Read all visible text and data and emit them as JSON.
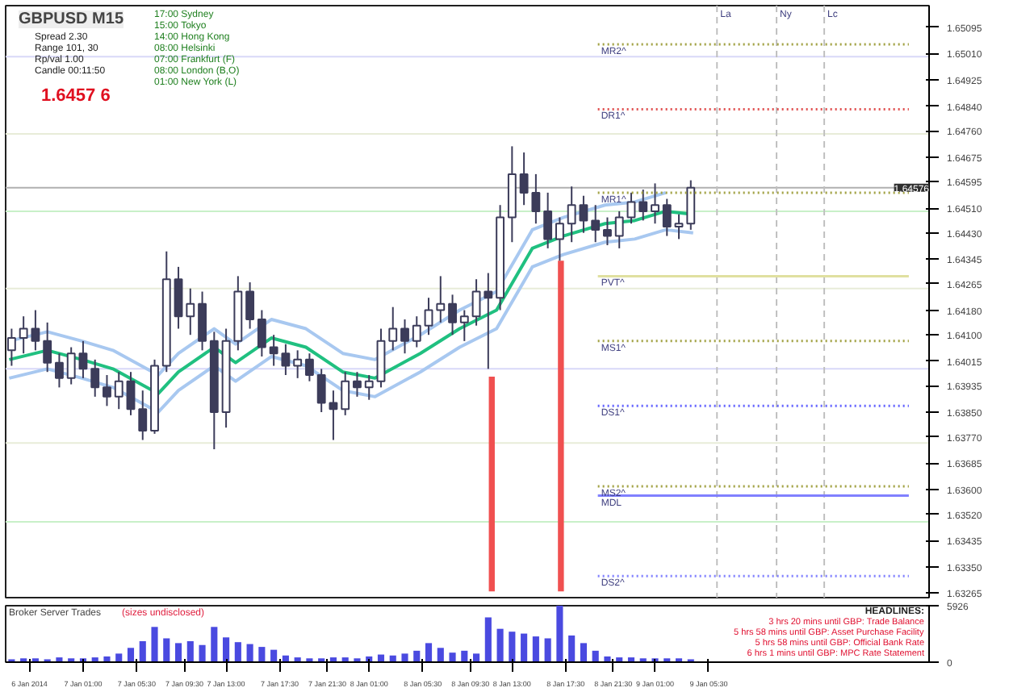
{
  "chart_data": [
    {
      "type": "candlestick",
      "title": "GBPUSD M15",
      "color": "#3c3c5a",
      "tick_labels": "y",
      "annotations": [
        "Spread 2.30",
        "Range 101, 30",
        "Rp/val 1.00",
        "Candle 00:11:50",
        "1.6457 6",
        "17:00 Sydney",
        "15:00 Tokyo",
        "14:00 Hong Kong",
        "08:00 Helsinki",
        "07:00 Frankfurt (F)",
        "08:00 London (B,O)",
        "01:00 New York (L)"
      ],
      "xlim": [
        "2014-01-06T18:30",
        "2014-01-10T00:00"
      ],
      "ylim": [
        1.6325,
        1.65165
      ],
      "yticks": [
        {
          "value": 1.65095,
          "label": "1.65095"
        },
        {
          "value": 1.6501,
          "label": "1.65010"
        },
        {
          "value": 1.64925,
          "label": "1.64925"
        },
        {
          "value": 1.6484,
          "label": "1.64840"
        },
        {
          "value": 1.6476,
          "label": "1.64760"
        },
        {
          "value": 1.64675,
          "label": "1.64675"
        },
        {
          "value": 1.64595,
          "label": "1.64595"
        },
        {
          "value": 1.6451,
          "label": "1.64510"
        },
        {
          "value": 1.6443,
          "label": "1.64430"
        },
        {
          "value": 1.64345,
          "label": "1.64345"
        },
        {
          "value": 1.64265,
          "label": "1.64265"
        },
        {
          "value": 1.6418,
          "label": "1.64180"
        },
        {
          "value": 1.641,
          "label": "1.64100"
        },
        {
          "value": 1.64015,
          "label": "1.64015"
        },
        {
          "value": 1.63935,
          "label": "1.63935"
        },
        {
          "value": 1.6385,
          "label": "1.63850"
        },
        {
          "value": 1.6377,
          "label": "1.63770"
        },
        {
          "value": 1.63685,
          "label": "1.63685"
        },
        {
          "value": 1.636,
          "label": "1.63600"
        },
        {
          "value": 1.6352,
          "label": "1.63520"
        },
        {
          "value": 1.63435,
          "label": "1.63435"
        },
        {
          "value": 1.6335,
          "label": "1.63350"
        },
        {
          "value": 1.63265,
          "label": "1.63265"
        }
      ],
      "x": [
        "2014-01-06T19:00",
        "2014-01-06T20:00",
        "2014-01-06T21:00",
        "2014-01-06T22:00",
        "2014-01-06T23:00",
        "2014-01-07T00:00",
        "2014-01-07T01:00",
        "2014-01-07T02:00",
        "2014-01-07T03:00",
        "2014-01-07T04:00",
        "2014-01-07T05:00",
        "2014-01-07T06:00",
        "2014-01-07T07:00",
        "2014-01-07T08:00",
        "2014-01-07T09:00",
        "2014-01-07T10:00",
        "2014-01-07T11:00",
        "2014-01-07T12:00",
        "2014-01-07T13:00",
        "2014-01-07T14:00",
        "2014-01-07T15:00",
        "2014-01-07T16:00",
        "2014-01-07T17:00",
        "2014-01-07T18:00",
        "2014-01-07T19:00",
        "2014-01-07T20:00",
        "2014-01-07T21:00",
        "2014-01-07T22:00",
        "2014-01-07T23:00",
        "2014-01-08T00:00",
        "2014-01-08T01:00",
        "2014-01-08T02:00",
        "2014-01-08T03:00",
        "2014-01-08T04:00",
        "2014-01-08T05:00",
        "2014-01-08T06:00",
        "2014-01-08T07:00",
        "2014-01-08T08:00",
        "2014-01-08T09:00",
        "2014-01-08T10:00",
        "2014-01-08T11:00",
        "2014-01-08T12:00",
        "2014-01-08T13:00",
        "2014-01-08T14:00",
        "2014-01-08T15:00",
        "2014-01-08T16:00",
        "2014-01-08T17:00",
        "2014-01-08T18:00",
        "2014-01-08T19:00",
        "2014-01-08T20:00",
        "2014-01-08T21:00",
        "2014-01-08T22:00",
        "2014-01-08T23:00",
        "2014-01-09T00:00",
        "2014-01-09T01:00",
        "2014-01-09T02:00",
        "2014-01-09T03:00",
        "2014-01-09T04:00"
      ],
      "ohlc": [
        [
          1.6405,
          1.6412,
          1.64,
          1.6409
        ],
        [
          1.6409,
          1.6416,
          1.6404,
          1.6412
        ],
        [
          1.6412,
          1.6418,
          1.6405,
          1.6408
        ],
        [
          1.6408,
          1.6414,
          1.6398,
          1.6401
        ],
        [
          1.6401,
          1.6404,
          1.6393,
          1.6396
        ],
        [
          1.6396,
          1.6406,
          1.6394,
          1.6404
        ],
        [
          1.6404,
          1.6408,
          1.6396,
          1.6399
        ],
        [
          1.6399,
          1.6402,
          1.639,
          1.6393
        ],
        [
          1.6393,
          1.6397,
          1.6387,
          1.639
        ],
        [
          1.639,
          1.6398,
          1.6386,
          1.6395
        ],
        [
          1.6395,
          1.6398,
          1.6384,
          1.6386
        ],
        [
          1.6386,
          1.6392,
          1.6376,
          1.6379
        ],
        [
          1.6379,
          1.6402,
          1.6378,
          1.64
        ],
        [
          1.64,
          1.6437,
          1.6398,
          1.6428
        ],
        [
          1.6428,
          1.6432,
          1.6412,
          1.6416
        ],
        [
          1.6416,
          1.6425,
          1.641,
          1.642
        ],
        [
          1.642,
          1.6424,
          1.6405,
          1.6408
        ],
        [
          1.6408,
          1.6411,
          1.6373,
          1.6385
        ],
        [
          1.6385,
          1.6412,
          1.638,
          1.6408
        ],
        [
          1.6408,
          1.6429,
          1.6405,
          1.6424
        ],
        [
          1.6424,
          1.6427,
          1.6412,
          1.6415
        ],
        [
          1.6415,
          1.6418,
          1.6403,
          1.6406
        ],
        [
          1.6406,
          1.641,
          1.64,
          1.6404
        ],
        [
          1.6404,
          1.6407,
          1.6397,
          1.64
        ],
        [
          1.64,
          1.6405,
          1.6396,
          1.6402
        ],
        [
          1.6402,
          1.6404,
          1.6395,
          1.6397
        ],
        [
          1.6397,
          1.6399,
          1.6385,
          1.6388
        ],
        [
          1.6388,
          1.6392,
          1.6376,
          1.6386
        ],
        [
          1.6386,
          1.6398,
          1.6384,
          1.6395
        ],
        [
          1.6395,
          1.6398,
          1.639,
          1.6393
        ],
        [
          1.6393,
          1.6397,
          1.6389,
          1.6395
        ],
        [
          1.6395,
          1.6412,
          1.6393,
          1.6408
        ],
        [
          1.6408,
          1.6419,
          1.6405,
          1.6412
        ],
        [
          1.6412,
          1.6415,
          1.6404,
          1.6408
        ],
        [
          1.6408,
          1.6416,
          1.6406,
          1.6413
        ],
        [
          1.6413,
          1.6422,
          1.641,
          1.6418
        ],
        [
          1.6418,
          1.6429,
          1.6414,
          1.642
        ],
        [
          1.642,
          1.6423,
          1.641,
          1.6414
        ],
        [
          1.6414,
          1.6418,
          1.6408,
          1.6416
        ],
        [
          1.6416,
          1.6428,
          1.6413,
          1.6424
        ],
        [
          1.6424,
          1.643,
          1.6399,
          1.6422
        ],
        [
          1.6422,
          1.6452,
          1.6418,
          1.6448
        ],
        [
          1.6448,
          1.6471,
          1.644,
          1.6462
        ],
        [
          1.6462,
          1.6469,
          1.6452,
          1.6456
        ],
        [
          1.6456,
          1.6462,
          1.6446,
          1.645
        ],
        [
          1.645,
          1.6456,
          1.6438,
          1.6441
        ],
        [
          1.6441,
          1.6448,
          1.6434,
          1.6446
        ],
        [
          1.6446,
          1.6458,
          1.644,
          1.6452
        ],
        [
          1.6452,
          1.6455,
          1.6443,
          1.6447
        ],
        [
          1.6447,
          1.6452,
          1.644,
          1.6444
        ],
        [
          1.6444,
          1.6448,
          1.6439,
          1.6442
        ],
        [
          1.6442,
          1.645,
          1.6438,
          1.6448
        ],
        [
          1.6448,
          1.6456,
          1.6446,
          1.6453
        ],
        [
          1.6453,
          1.6457,
          1.6447,
          1.645
        ],
        [
          1.645,
          1.6459,
          1.6446,
          1.6452
        ],
        [
          1.6452,
          1.6454,
          1.6442,
          1.6445
        ],
        [
          1.6445,
          1.6449,
          1.6441,
          1.6446
        ],
        [
          1.6446,
          1.646,
          1.6444,
          1.64576
        ]
      ],
      "series": [
        {
          "type": "line",
          "color": "#a8c8f0",
          "x": [
            "2014-01-06T18:48",
            "2014-01-06T22:00",
            "2014-01-07T00:54",
            "2014-01-07T03:30",
            "2014-01-07T07:18",
            "2014-01-07T09:00",
            "2014-01-07T12:00",
            "2014-01-07T13:48",
            "2014-01-07T16:48",
            "2014-01-07T19:42",
            "2014-01-07T22:48",
            "2014-01-08T01:30",
            "2014-01-08T05:18",
            "2014-01-08T08:36",
            "2014-01-08T11:42",
            "2014-01-08T14:42",
            "2014-01-08T17:18",
            "2014-01-08T20:48",
            "2014-01-08T23:18",
            "2014-01-09T01:54"
          ],
          "values": [
            1.6408,
            1.6411,
            1.6408,
            1.6405,
            1.6397,
            1.6404,
            1.6412,
            1.6407,
            1.6415,
            1.6412,
            1.6404,
            1.6402,
            1.641,
            1.6418,
            1.6424,
            1.6444,
            1.6448,
            1.6452,
            1.6453,
            1.6456
          ]
        },
        {
          "type": "line",
          "color": "#a8c8f0",
          "x": [
            "2014-01-06T18:48",
            "2014-01-06T22:00",
            "2014-01-07T00:54",
            "2014-01-07T03:30",
            "2014-01-07T07:18",
            "2014-01-07T09:00",
            "2014-01-07T12:00",
            "2014-01-07T13:48",
            "2014-01-07T16:48",
            "2014-01-07T19:42",
            "2014-01-07T22:48",
            "2014-01-08T01:30",
            "2014-01-08T05:18",
            "2014-01-08T08:36",
            "2014-01-08T11:42",
            "2014-01-08T14:42",
            "2014-01-08T17:18",
            "2014-01-08T20:48",
            "2014-01-08T23:18",
            "2014-01-09T01:54",
            "2014-01-09T04:12"
          ],
          "values": [
            1.6396,
            1.6399,
            1.6396,
            1.6393,
            1.6385,
            1.6392,
            1.64,
            1.6395,
            1.6403,
            1.64,
            1.6392,
            1.639,
            1.6398,
            1.6406,
            1.6412,
            1.6432,
            1.6436,
            1.644,
            1.6441,
            1.6444,
            1.6443
          ]
        },
        {
          "type": "line",
          "color": "#20c080",
          "x": [
            "2014-01-06T18:48",
            "2014-01-06T22:00",
            "2014-01-07T00:54",
            "2014-01-07T03:30",
            "2014-01-07T07:18",
            "2014-01-07T09:00",
            "2014-01-07T12:00",
            "2014-01-07T13:48",
            "2014-01-07T16:48",
            "2014-01-07T19:42",
            "2014-01-07T22:48",
            "2014-01-08T01:30",
            "2014-01-08T05:18",
            "2014-01-08T08:36",
            "2014-01-08T11:42",
            "2014-01-08T14:42",
            "2014-01-08T17:18",
            "2014-01-08T20:48",
            "2014-01-08T23:18",
            "2014-01-09T01:54",
            "2014-01-09T04:12"
          ],
          "values": [
            1.6402,
            1.6405,
            1.6402,
            1.6399,
            1.6391,
            1.6398,
            1.6406,
            1.6401,
            1.6409,
            1.6406,
            1.6398,
            1.6396,
            1.6404,
            1.6412,
            1.6418,
            1.6438,
            1.6442,
            1.6446,
            1.6447,
            1.645,
            1.6449
          ]
        },
        {
          "type": "bar",
          "color": "#f05050",
          "x": [
            "2014-01-08T11:18",
            "2014-01-08T17:06"
          ],
          "base": [
            1.6327,
            1.6327
          ],
          "values": [
            0.00695,
            0.0107
          ]
        },
        {
          "type": "line",
          "name": "MR2^",
          "color": "#a0a040",
          "line_style": "dotted",
          "x": [
            "2014-01-08T20:12",
            "2014-01-09T22:18"
          ],
          "values": [
            1.6504,
            1.6504
          ]
        },
        {
          "type": "line",
          "name": "DR1^",
          "color": "#e05050",
          "line_style": "dotted",
          "x": [
            "2014-01-08T20:12",
            "2014-01-09T22:18"
          ],
          "values": [
            1.6483,
            1.6483
          ]
        },
        {
          "type": "line",
          "name": "MR1^",
          "color": "#a0a040",
          "line_style": "dotted",
          "x": [
            "2014-01-08T20:12",
            "2014-01-09T22:18"
          ],
          "values": [
            1.6456,
            1.6456
          ]
        },
        {
          "type": "line",
          "name": "PVT^",
          "color": "#e0e0a0",
          "line_style": "solid",
          "x": [
            "2014-01-08T20:12",
            "2014-01-09T22:18"
          ],
          "values": [
            1.6429,
            1.6429
          ]
        },
        {
          "type": "line",
          "name": "MS1^",
          "color": "#a0a040",
          "line_style": "dotted",
          "x": [
            "2014-01-08T20:12",
            "2014-01-09T22:18"
          ],
          "values": [
            1.6408,
            1.6408
          ]
        },
        {
          "type": "line",
          "name": "DS1^",
          "color": "#6060ff",
          "line_style": "dotted",
          "x": [
            "2014-01-08T20:12",
            "2014-01-09T22:18"
          ],
          "values": [
            1.6387,
            1.6387
          ]
        },
        {
          "type": "line",
          "name": "MS2^",
          "color": "#a0a040",
          "line_style": "dotted",
          "x": [
            "2014-01-08T20:12",
            "2014-01-09T22:18"
          ],
          "values": [
            1.6361,
            1.6361
          ]
        },
        {
          "type": "line",
          "name": "MDL",
          "color": "#8080ff",
          "line_style": "solid",
          "x": [
            "2014-01-08T20:12",
            "2014-01-09T22:18"
          ],
          "values": [
            1.6358,
            1.6358
          ]
        },
        {
          "type": "line",
          "name": "DS2^",
          "color": "#8080ff",
          "line_style": "dotted",
          "x": [
            "2014-01-08T20:12",
            "2014-01-09T22:18"
          ],
          "values": [
            1.6332,
            1.6332
          ]
        }
      ],
      "ref_lines": [
        {
          "axis": "y",
          "value": 1.65,
          "color": "#d8d8f8"
        },
        {
          "axis": "y",
          "value": 1.6475,
          "color": "#e8ecd8"
        },
        {
          "axis": "y",
          "value": 1.645,
          "color": "#c8f0c8"
        },
        {
          "axis": "y",
          "value": 1.6425,
          "color": "#e8ecd8"
        },
        {
          "axis": "y",
          "value": 1.6399,
          "color": "#d8d8f8"
        },
        {
          "axis": "y",
          "value": 1.6375,
          "color": "#e8ecd8"
        },
        {
          "axis": "y",
          "value": 1.63495,
          "color": "#c8f0c8"
        },
        {
          "axis": "y",
          "value": 1.64576,
          "label": "1.64576",
          "color": "#b0b0b0"
        },
        {
          "axis": "x",
          "value": "2014-01-09T06:12",
          "label": "La",
          "color": "#c0c0c0",
          "line_style": "dashed"
        },
        {
          "axis": "x",
          "value": "2014-01-09T11:12",
          "label": "Ny",
          "color": "#c0c0c0",
          "line_style": "dashed"
        },
        {
          "axis": "x",
          "value": "2014-01-09T15:12",
          "label": "Lc",
          "color": "#c0c0c0",
          "line_style": "dashed"
        }
      ]
    },
    {
      "type": "bar",
      "title": "Broker Server Trades",
      "subtitle": "(sizes undisclosed)",
      "color": "#4a4ae0",
      "annotations": [
        "HEADLINES:",
        "3 hrs 20 mins until GBP: Trade Balance",
        "5 hrs 58 mins until GBP: Asset Purchase Facility",
        "5 hrs 58 mins until GBP: Official Bank Rate",
        "6 hrs 1 mins until GBP: MPC Rate Statement"
      ],
      "xlim": [
        "2014-01-06T18:30",
        "2014-01-10T00:00"
      ],
      "ylim": [
        0,
        5926
      ],
      "yticks": [
        0,
        5926
      ],
      "xticks": [
        {
          "value": "2014-01-06T20:30",
          "label": "6 Jan 2014"
        },
        {
          "value": "2014-01-07T01:00",
          "label": "7 Jan 01:00"
        },
        {
          "value": "2014-01-07T05:30",
          "label": "7 Jan 05:30"
        },
        {
          "value": "2014-01-07T09:30",
          "label": "7 Jan 09:30"
        },
        {
          "value": "2014-01-07T13:00",
          "label": "7 Jan 13:00"
        },
        {
          "value": "2014-01-07T17:30",
          "label": "7 Jan 17:30"
        },
        {
          "value": "2014-01-07T21:30",
          "label": "7 Jan 21:30"
        },
        {
          "value": "2014-01-08T01:00",
          "label": "8 Jan 01:00"
        },
        {
          "value": "2014-01-08T05:30",
          "label": "8 Jan 05:30"
        },
        {
          "value": "2014-01-08T09:30",
          "label": "8 Jan 09:30"
        },
        {
          "value": "2014-01-08T13:00",
          "label": "8 Jan 13:00"
        },
        {
          "value": "2014-01-08T17:30",
          "label": "8 Jan 17:30"
        },
        {
          "value": "2014-01-08T21:30",
          "label": "8 Jan 21:30"
        },
        {
          "value": "2014-01-09T01:00",
          "label": "9 Jan 01:00"
        },
        {
          "value": "2014-01-09T05:30",
          "label": "9 Jan 05:30"
        }
      ],
      "x": [
        "2014-01-06T19:00",
        "2014-01-06T20:00",
        "2014-01-06T21:00",
        "2014-01-06T22:00",
        "2014-01-06T23:00",
        "2014-01-07T00:00",
        "2014-01-07T01:00",
        "2014-01-07T02:00",
        "2014-01-07T03:00",
        "2014-01-07T04:00",
        "2014-01-07T05:00",
        "2014-01-07T06:00",
        "2014-01-07T07:00",
        "2014-01-07T08:00",
        "2014-01-07T09:00",
        "2014-01-07T10:00",
        "2014-01-07T11:00",
        "2014-01-07T12:00",
        "2014-01-07T13:00",
        "2014-01-07T14:00",
        "2014-01-07T15:00",
        "2014-01-07T16:00",
        "2014-01-07T17:00",
        "2014-01-07T18:00",
        "2014-01-07T19:00",
        "2014-01-07T20:00",
        "2014-01-07T21:00",
        "2014-01-07T22:00",
        "2014-01-07T23:00",
        "2014-01-08T00:00",
        "2014-01-08T01:00",
        "2014-01-08T02:00",
        "2014-01-08T03:00",
        "2014-01-08T04:00",
        "2014-01-08T05:00",
        "2014-01-08T06:00",
        "2014-01-08T07:00",
        "2014-01-08T08:00",
        "2014-01-08T09:00",
        "2014-01-08T10:00",
        "2014-01-08T11:00",
        "2014-01-08T12:00",
        "2014-01-08T13:00",
        "2014-01-08T14:00",
        "2014-01-08T15:00",
        "2014-01-08T16:00",
        "2014-01-08T17:00",
        "2014-01-08T18:00",
        "2014-01-08T19:00",
        "2014-01-08T20:00",
        "2014-01-08T21:00",
        "2014-01-08T22:00",
        "2014-01-08T23:00",
        "2014-01-09T00:00",
        "2014-01-09T01:00",
        "2014-01-09T02:00",
        "2014-01-09T03:00",
        "2014-01-09T04:00"
      ],
      "values": [
        300,
        400,
        400,
        300,
        500,
        400,
        400,
        500,
        600,
        900,
        1500,
        2200,
        3700,
        2500,
        2000,
        2200,
        1800,
        3700,
        2600,
        2100,
        1900,
        1600,
        1300,
        700,
        500,
        400,
        400,
        500,
        500,
        400,
        600,
        800,
        700,
        900,
        1200,
        2000,
        1500,
        1000,
        1200,
        900,
        4700,
        3500,
        3200,
        3000,
        2700,
        2500,
        5926,
        2800,
        2000,
        1200,
        600,
        500,
        500,
        400,
        400,
        400,
        400,
        300
      ]
    }
  ]
}
